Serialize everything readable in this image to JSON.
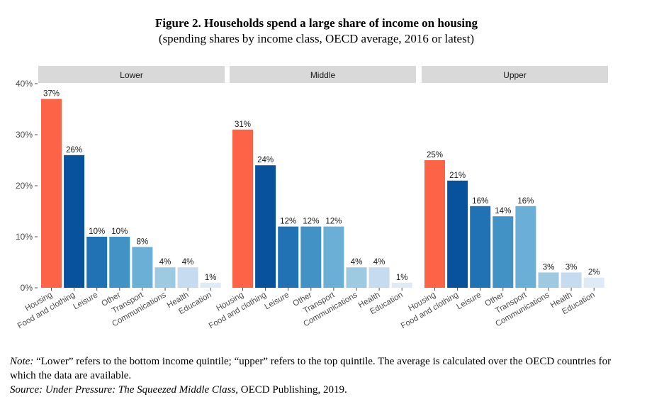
{
  "title": {
    "main": "Figure 2. Households spend a large share of income on housing",
    "subtitle": "(spending shares by income class, OECD average, 2016 or latest)"
  },
  "colors": {
    "Housing": "#fd6347",
    "Food and clothing": "#08519c",
    "Leisure": "#2171b5",
    "Other": "#4292c6",
    "Transport": "#6baed6",
    "Communications": "#9ecae1",
    "Health": "#c6dbef",
    "Education": "#deebf7",
    "facet_strip": "#d9d9d9",
    "axis_text": "#4d4d4d"
  },
  "chart_data": {
    "type": "bar",
    "categories": [
      "Housing",
      "Food and clothing",
      "Leisure",
      "Other",
      "Transport",
      "Communications",
      "Health",
      "Education"
    ],
    "facets": [
      {
        "name": "Lower",
        "values": [
          37,
          26,
          10,
          10,
          8,
          4,
          4,
          1
        ],
        "labels": [
          "37%",
          "26%",
          "10%",
          "10%",
          "8%",
          "4%",
          "4%",
          "1%"
        ]
      },
      {
        "name": "Middle",
        "values": [
          31,
          24,
          12,
          12,
          12,
          4,
          4,
          1
        ],
        "labels": [
          "31%",
          "24%",
          "12%",
          "12%",
          "12%",
          "4%",
          "4%",
          "1%"
        ]
      },
      {
        "name": "Upper",
        "values": [
          25,
          21,
          16,
          14,
          16,
          3,
          3,
          2
        ],
        "labels": [
          "25%",
          "21%",
          "16%",
          "14%",
          "16%",
          "3%",
          "3%",
          "2%"
        ]
      }
    ],
    "ylim": [
      0,
      40
    ],
    "yticks": [
      0,
      10,
      20,
      30,
      40
    ],
    "ytick_labels": [
      "0%",
      "10%",
      "20%",
      "30%",
      "40%"
    ],
    "xlabel": "",
    "ylabel": "",
    "grid": false,
    "legend": "none"
  },
  "notes": {
    "note_label": "Note:",
    "note_text": " “Lower” refers to the bottom income quintile; “upper” refers to the top quintile.  The average is calculated over the OECD countries for which the data are available.",
    "source_label": "Source:",
    "source_title": " Under Pressure: The Squeezed Middle Class,",
    "source_text": " OECD Publishing, 2019."
  }
}
